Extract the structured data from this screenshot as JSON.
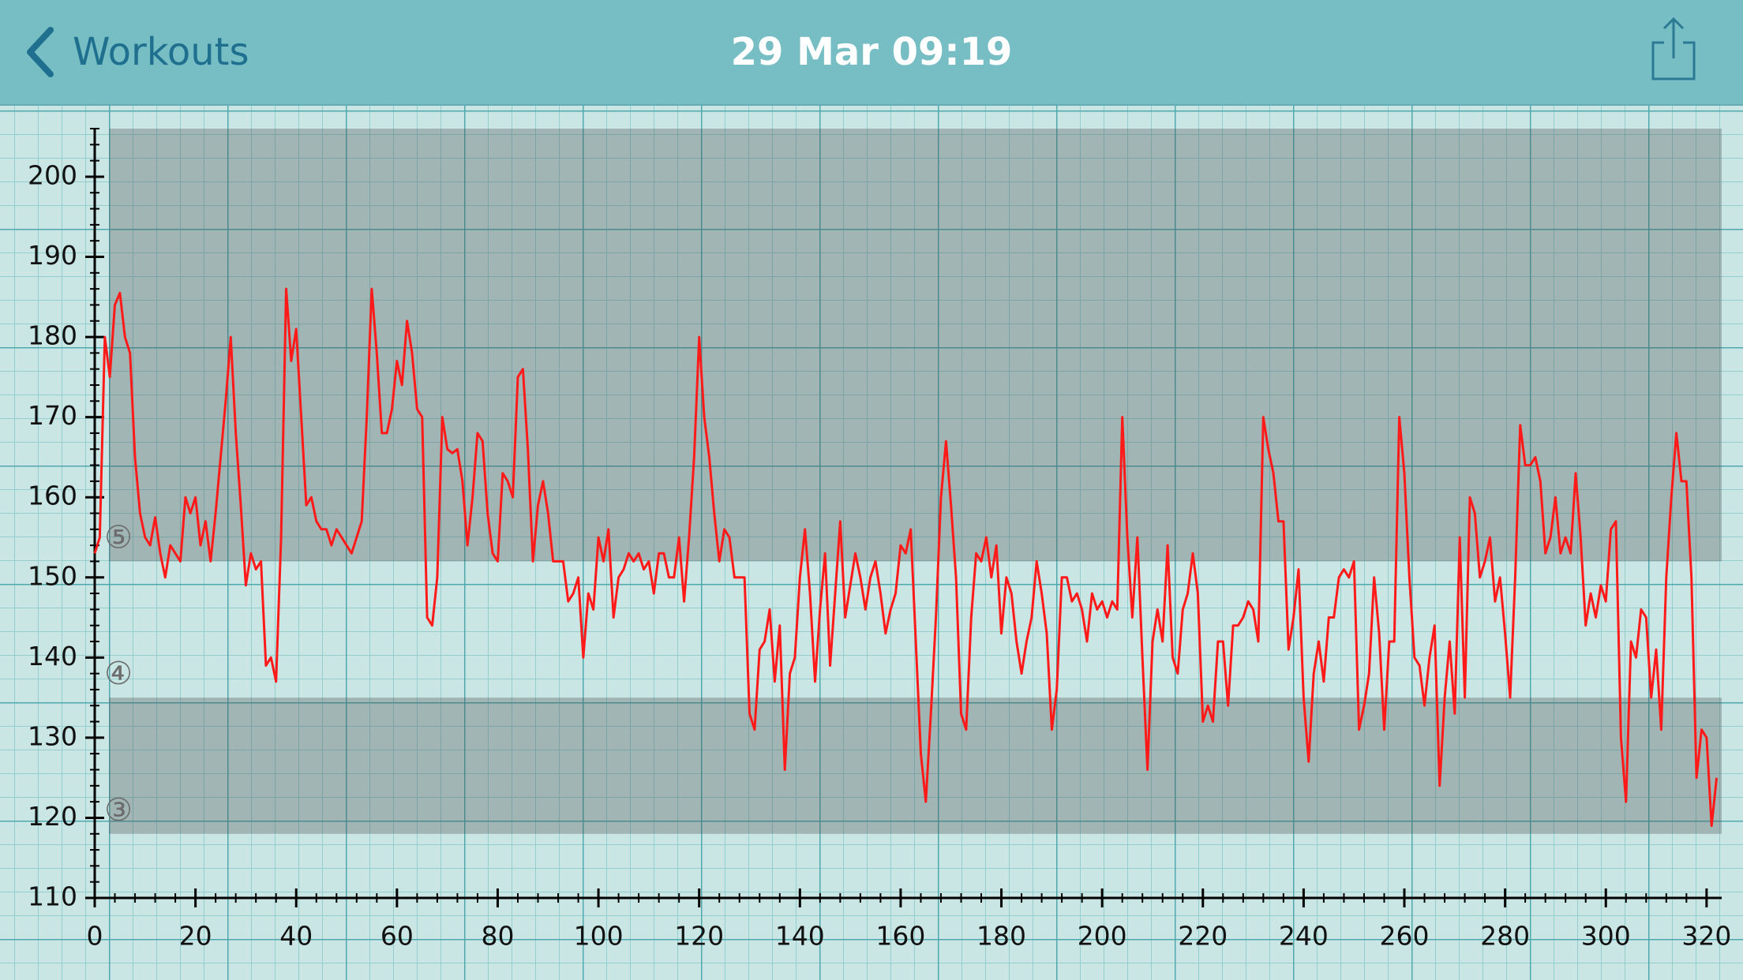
{
  "header": {
    "back": "Workouts",
    "title": "29 Mar 09:19"
  },
  "chart_data": {
    "type": "line",
    "color": "#ff1a1a",
    "xlim": [
      0,
      323
    ],
    "ylim": [
      110,
      206
    ],
    "xticks": [
      0,
      20,
      40,
      60,
      80,
      100,
      120,
      140,
      160,
      180,
      200,
      220,
      240,
      260,
      280,
      300,
      320
    ],
    "yticks": [
      110,
      120,
      130,
      140,
      150,
      160,
      170,
      180,
      190,
      200
    ],
    "zones": [
      {
        "label": "⑤",
        "from": 152,
        "to": 206,
        "shaded": true
      },
      {
        "label": "④",
        "from": 135,
        "to": 152,
        "shaded": false
      },
      {
        "label": "③",
        "from": 118,
        "to": 135,
        "shaded": true
      }
    ],
    "x": [
      0,
      1,
      2,
      3,
      4,
      5,
      6,
      7,
      8,
      9,
      10,
      11,
      12,
      13,
      14,
      15,
      16,
      17,
      18,
      19,
      20,
      21,
      22,
      23,
      24,
      25,
      26,
      27,
      28,
      29,
      30,
      31,
      32,
      33,
      34,
      35,
      36,
      37,
      38,
      39,
      40,
      41,
      42,
      43,
      44,
      45,
      46,
      47,
      48,
      49,
      50,
      51,
      52,
      53,
      54,
      55,
      56,
      57,
      58,
      59,
      60,
      61,
      62,
      63,
      64,
      65,
      66,
      67,
      68,
      69,
      70,
      71,
      72,
      73,
      74,
      75,
      76,
      77,
      78,
      79,
      80,
      81,
      82,
      83,
      84,
      85,
      86,
      87,
      88,
      89,
      90,
      91,
      92,
      93,
      94,
      95,
      96,
      97,
      98,
      99,
      100,
      101,
      102,
      103,
      104,
      105,
      106,
      107,
      108,
      109,
      110,
      111,
      112,
      113,
      114,
      115,
      116,
      117,
      118,
      119,
      120,
      121,
      122,
      123,
      124,
      125,
      126,
      127,
      128,
      129,
      130,
      131,
      132,
      133,
      134,
      135,
      136,
      137,
      138,
      139,
      140,
      141,
      142,
      143,
      144,
      145,
      146,
      147,
      148,
      149,
      150,
      151,
      152,
      153,
      154,
      155,
      156,
      157,
      158,
      159,
      160,
      161,
      162,
      163,
      164,
      165,
      166,
      167,
      168,
      169,
      170,
      171,
      172,
      173,
      174,
      175,
      176,
      177,
      178,
      179,
      180,
      181,
      182,
      183,
      184,
      185,
      186,
      187,
      188,
      189,
      190,
      191,
      192,
      193,
      194,
      195,
      196,
      197,
      198,
      199,
      200,
      201,
      202,
      203,
      204,
      205,
      206,
      207,
      208,
      209,
      210,
      211,
      212,
      213,
      214,
      215,
      216,
      217,
      218,
      219,
      220,
      221,
      222,
      223,
      224,
      225,
      226,
      227,
      228,
      229,
      230,
      231,
      232,
      233,
      234,
      235,
      236,
      237,
      238,
      239,
      240,
      241,
      242,
      243,
      244,
      245,
      246,
      247,
      248,
      249,
      250,
      251,
      252,
      253,
      254,
      255,
      256,
      257,
      258,
      259,
      260,
      261,
      262,
      263,
      264,
      265,
      266,
      267,
      268,
      269,
      270,
      271,
      272,
      273,
      274,
      275,
      276,
      277,
      278,
      279,
      280,
      281,
      282,
      283,
      284,
      285,
      286,
      287,
      288,
      289,
      290,
      291,
      292,
      293,
      294,
      295,
      296,
      297,
      298,
      299,
      300,
      301,
      302,
      303,
      304,
      305,
      306,
      307,
      308,
      309,
      310,
      311,
      312,
      313,
      314,
      315,
      316,
      317,
      318,
      319,
      320,
      321,
      322
    ],
    "values": [
      153,
      155,
      180,
      175,
      184,
      185.5,
      180,
      178,
      165,
      158,
      155,
      154,
      157.5,
      153,
      150,
      154,
      153,
      152,
      160,
      158,
      160,
      154,
      157,
      152,
      158,
      165,
      172,
      180,
      168,
      159,
      149,
      153,
      151,
      152,
      139,
      140,
      137,
      155,
      186,
      177,
      181,
      170,
      159,
      160,
      157,
      156,
      156,
      154,
      156,
      155,
      154,
      153,
      155,
      157,
      170,
      186,
      178,
      168,
      168,
      171,
      177,
      174,
      182,
      178,
      171,
      170,
      145,
      144,
      150,
      170,
      166,
      165.5,
      166,
      162,
      154,
      160,
      168,
      167,
      158,
      153,
      152,
      163,
      162,
      160,
      175,
      176,
      166,
      152,
      159,
      162,
      158,
      152,
      152,
      152,
      147,
      148,
      150,
      140,
      148,
      146,
      155,
      152,
      156,
      145,
      150,
      151,
      153,
      152,
      153,
      151,
      152,
      148,
      153,
      153,
      150,
      150,
      155,
      147,
      155,
      165,
      180,
      170,
      165,
      158,
      152,
      156,
      155,
      150,
      150,
      150,
      133,
      131,
      141,
      142,
      146,
      137,
      144,
      126,
      138,
      140,
      150,
      156,
      148,
      137,
      146,
      153,
      139,
      148,
      157,
      145,
      149,
      153,
      150,
      146,
      150,
      152,
      148,
      143,
      146,
      148,
      154,
      153,
      156,
      142,
      128,
      122,
      133,
      145,
      160,
      167,
      159,
      150,
      133,
      131,
      145,
      153,
      152,
      155,
      150,
      154,
      143,
      150,
      148,
      142,
      138,
      142,
      145,
      152,
      148,
      143,
      131,
      136,
      150,
      150,
      147,
      148,
      146,
      142,
      148,
      146,
      147,
      145,
      147,
      146,
      170,
      155,
      145,
      155,
      140,
      126,
      142,
      146,
      142,
      154,
      140,
      138,
      146,
      148,
      153,
      148,
      132,
      134,
      132,
      142,
      142,
      134,
      144,
      144,
      145,
      147,
      146,
      142,
      170,
      166,
      163,
      157,
      157,
      141,
      145,
      151,
      135,
      127,
      138,
      142,
      137,
      145,
      145,
      150,
      151,
      150,
      152,
      131,
      134,
      138,
      150,
      143,
      131,
      142,
      142,
      170,
      163,
      150,
      140,
      139,
      134,
      140,
      144,
      124,
      135,
      142,
      133,
      155,
      135,
      160,
      158,
      150,
      152,
      155,
      147,
      150,
      143,
      135,
      150,
      169,
      164,
      164,
      165,
      162,
      153,
      155,
      160,
      153,
      155,
      153,
      163,
      155,
      144,
      148,
      145,
      149,
      147,
      156,
      157,
      130,
      122,
      142,
      140,
      146,
      145,
      135,
      141,
      131,
      150,
      160,
      168,
      162,
      162,
      150,
      125,
      131,
      130,
      119,
      125
    ]
  }
}
